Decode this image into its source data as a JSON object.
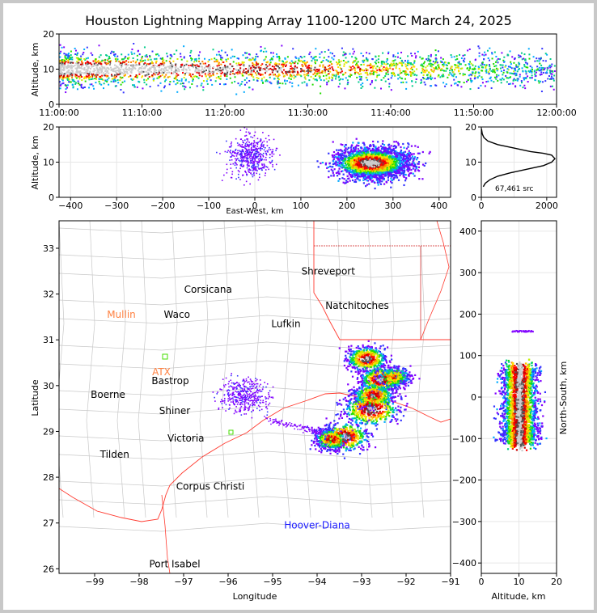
{
  "title": "Houston Lightning Mapping Array 1100-1200 UTC March 24, 2025",
  "colors": {
    "density": [
      "#8000ff",
      "#3333ff",
      "#00aaff",
      "#00cc88",
      "#22dd00",
      "#ccee00",
      "#ffdd00",
      "#ff8800",
      "#ff0000",
      "#c80000",
      "#555555",
      "#cccccc"
    ]
  },
  "chart_data": [
    {
      "id": "time-altitude",
      "type": "heatmap",
      "ylabel": "Altitude, km",
      "ylim": [
        0,
        20
      ],
      "yticks": [
        "0",
        "10",
        "20"
      ],
      "xticks": [
        "11:00:00",
        "11:10:00",
        "11:20:00",
        "11:30:00",
        "11:40:00",
        "11:50:00",
        "12:00:00"
      ]
    },
    {
      "id": "ew-altitude",
      "type": "heatmap",
      "xlabel": "East-West, km",
      "ylabel": "Altitude, km",
      "xlim": [
        -425,
        425
      ],
      "ylim": [
        0,
        20
      ],
      "xticks": [
        "−400",
        "−300",
        "−200",
        "−100",
        "0",
        "100",
        "200",
        "300",
        "400"
      ],
      "yticks": [
        "0",
        "10",
        "20"
      ]
    },
    {
      "id": "altitude-histogram",
      "type": "line",
      "xlim": [
        0,
        2300
      ],
      "ylim": [
        0,
        20
      ],
      "xticks": [
        "0",
        "2000"
      ],
      "yticks": [
        "0",
        "10",
        "20"
      ],
      "annotation": "67,461 src",
      "x": [
        60,
        120,
        260,
        500,
        900,
        1400,
        1900,
        2150,
        2250,
        2150,
        1900,
        1500,
        1000,
        500,
        200,
        80,
        30,
        5
      ],
      "y": [
        3,
        4,
        5,
        6,
        7,
        8,
        9,
        10,
        11,
        12,
        12.5,
        13,
        14,
        15,
        16,
        17,
        18,
        19.5
      ]
    },
    {
      "id": "plan-view",
      "type": "heatmap",
      "xlabel": "Longitude",
      "ylabel": "Latitude",
      "xlim": [
        -99.8,
        -91
      ],
      "ylim": [
        25.9,
        33.6
      ],
      "xticks": [
        "−99",
        "−98",
        "−97",
        "−96",
        "−95",
        "−94",
        "−93",
        "−92",
        "−91"
      ],
      "yticks": [
        "26",
        "27",
        "28",
        "29",
        "30",
        "31",
        "32",
        "33"
      ],
      "cities": [
        {
          "name": "Shreveport",
          "lon": -93.75,
          "lat": 32.5
        },
        {
          "name": "Corsicana",
          "lon": -96.45,
          "lat": 32.1
        },
        {
          "name": "Natchitoches",
          "lon": -93.1,
          "lat": 31.75
        },
        {
          "name": "Waco",
          "lon": -97.15,
          "lat": 31.55
        },
        {
          "name": "Lufkin",
          "lon": -94.7,
          "lat": 31.35
        },
        {
          "name": "Bastrop",
          "lon": -97.3,
          "lat": 30.1
        },
        {
          "name": "Boerne",
          "lon": -98.7,
          "lat": 29.8
        },
        {
          "name": "Shiner",
          "lon": -97.2,
          "lat": 29.45
        },
        {
          "name": "Victoria",
          "lon": -96.95,
          "lat": 28.85
        },
        {
          "name": "Tilden",
          "lon": -98.55,
          "lat": 28.5
        },
        {
          "name": "Corpus Christi",
          "lon": -96.4,
          "lat": 27.8
        },
        {
          "name": "Port Isabel",
          "lon": -97.2,
          "lat": 26.1
        }
      ],
      "radars": [
        {
          "name": "Mullin",
          "lon": -98.4,
          "lat": 31.55,
          "color": "#ff8040"
        },
        {
          "name": "ATX",
          "lon": -97.5,
          "lat": 30.3,
          "color": "#ff8040"
        },
        {
          "name": "Hoover-Diana",
          "lon": -94.0,
          "lat": 26.95,
          "color": "#1a1aff"
        }
      ]
    },
    {
      "id": "altitude-ns",
      "type": "heatmap",
      "xlabel": "Altitude, km",
      "ylabel": "North-South, km",
      "xlim": [
        0,
        20
      ],
      "ylim": [
        -425,
        425
      ],
      "xticks": [
        "0",
        "10",
        "20"
      ],
      "yticks": [
        "−400",
        "−300",
        "−200",
        "−100",
        "0",
        "100",
        "200",
        "300",
        "400"
      ]
    }
  ]
}
